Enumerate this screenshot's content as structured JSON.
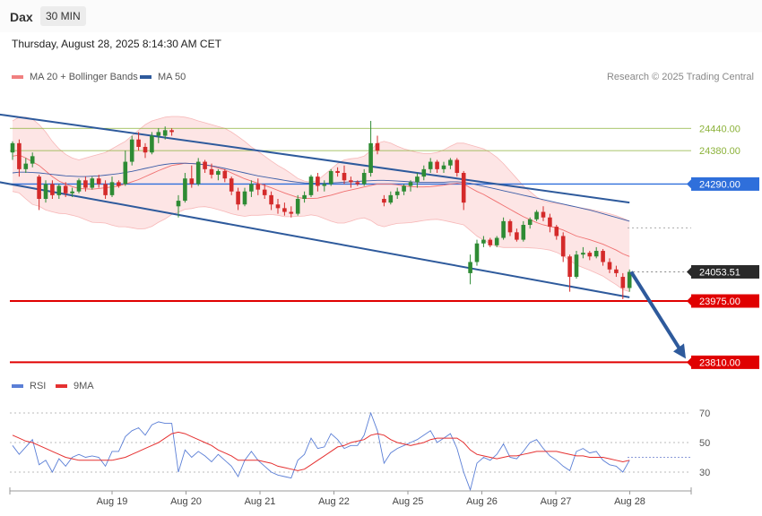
{
  "header": {
    "instrument": "Dax",
    "timeframe": "30 MIN"
  },
  "datetime": "Thursday, August 28, 2025 8:14:30 AM CET",
  "legend": {
    "ma20": {
      "label": "MA 20 + Bollinger Bands",
      "color": "#f08080"
    },
    "ma50": {
      "label": "MA 50",
      "color": "#2e5a9c"
    }
  },
  "copyright": "Research © 2025 Trading Central",
  "rsi_legend": {
    "rsi": {
      "label": "RSI",
      "color": "#5b7fd6"
    },
    "ma9": {
      "label": "9MA",
      "color": "#e53030"
    }
  },
  "chart_data": {
    "type": "candlestick",
    "x_ticks": [
      "Aug 19",
      "Aug 20",
      "Aug 21",
      "Aug 22",
      "Aug 25",
      "Aug 26",
      "Aug 27",
      "Aug 28"
    ],
    "levels": [
      {
        "label": "24440.00",
        "value": 24440,
        "color": "#8cb23a",
        "style": "thin"
      },
      {
        "label": "24380.00",
        "value": 24380,
        "color": "#8cb23a",
        "style": "thin"
      },
      {
        "label": "24290.00",
        "value": 24290,
        "color": "#2f6fdb",
        "style": "medium"
      },
      {
        "label": "23975.00",
        "value": 23975,
        "color": "#e00000",
        "style": "thick"
      },
      {
        "label": "23810.00",
        "value": 23810,
        "color": "#e00000",
        "style": "thick"
      }
    ],
    "last_price": {
      "label": "24053.51",
      "value": 24053.51
    },
    "ohlc": [
      [
        24375,
        24405,
        24355,
        24400
      ],
      [
        24400,
        24410,
        24310,
        24330
      ],
      [
        24330,
        24360,
        24320,
        24345
      ],
      [
        24345,
        24375,
        24335,
        24365
      ],
      [
        24310,
        24315,
        24220,
        24250
      ],
      [
        24250,
        24300,
        24240,
        24290
      ],
      [
        24290,
        24300,
        24250,
        24260
      ],
      [
        24260,
        24290,
        24250,
        24285
      ],
      [
        24285,
        24295,
        24255,
        24265
      ],
      [
        24265,
        24280,
        24255,
        24270
      ],
      [
        24270,
        24305,
        24265,
        24300
      ],
      [
        24300,
        24310,
        24270,
        24280
      ],
      [
        24280,
        24310,
        24275,
        24305
      ],
      [
        24305,
        24315,
        24280,
        24290
      ],
      [
        24290,
        24300,
        24250,
        24260
      ],
      [
        24260,
        24310,
        24255,
        24295
      ],
      [
        24295,
        24300,
        24280,
        24285
      ],
      [
        24290,
        24380,
        24285,
        24350
      ],
      [
        24350,
        24420,
        24340,
        24410
      ],
      [
        24410,
        24430,
        24380,
        24390
      ],
      [
        24390,
        24400,
        24360,
        24375
      ],
      [
        24375,
        24430,
        24370,
        24420
      ],
      [
        24420,
        24440,
        24400,
        24430
      ],
      [
        24420,
        24445,
        24410,
        24435
      ],
      [
        24435,
        24440,
        24420,
        24430
      ],
      [
        24230,
        24260,
        24200,
        24245
      ],
      [
        24245,
        24320,
        24240,
        24305
      ],
      [
        24305,
        24340,
        24280,
        24290
      ],
      [
        24290,
        24360,
        24285,
        24350
      ],
      [
        24350,
        24355,
        24320,
        24330
      ],
      [
        24330,
        24345,
        24305,
        24315
      ],
      [
        24315,
        24330,
        24300,
        24325
      ],
      [
        24325,
        24330,
        24295,
        24305
      ],
      [
        24305,
        24310,
        24260,
        24270
      ],
      [
        24270,
        24280,
        24220,
        24235
      ],
      [
        24235,
        24280,
        24230,
        24270
      ],
      [
        24270,
        24300,
        24255,
        24290
      ],
      [
        24290,
        24305,
        24260,
        24275
      ],
      [
        24275,
        24290,
        24250,
        24260
      ],
      [
        24260,
        24270,
        24220,
        24235
      ],
      [
        24235,
        24250,
        24210,
        24225
      ],
      [
        24225,
        24240,
        24205,
        24215
      ],
      [
        24215,
        24230,
        24200,
        24210
      ],
      [
        24210,
        24260,
        24205,
        24250
      ],
      [
        24250,
        24270,
        24240,
        24260
      ],
      [
        24260,
        24315,
        24255,
        24310
      ],
      [
        24310,
        24320,
        24270,
        24285
      ],
      [
        24285,
        24300,
        24270,
        24290
      ],
      [
        24290,
        24330,
        24285,
        24325
      ],
      [
        24325,
        24335,
        24310,
        24320
      ],
      [
        24320,
        24340,
        24290,
        24300
      ],
      [
        24300,
        24310,
        24280,
        24295
      ],
      [
        24295,
        24300,
        24285,
        24290
      ],
      [
        24290,
        24330,
        24285,
        24320
      ],
      [
        24320,
        24460,
        24310,
        24400
      ],
      [
        24400,
        24420,
        24370,
        24380
      ],
      [
        24250,
        24260,
        24230,
        24240
      ],
      [
        24240,
        24270,
        24235,
        24260
      ],
      [
        24260,
        24280,
        24250,
        24270
      ],
      [
        24270,
        24290,
        24260,
        24285
      ],
      [
        24285,
        24300,
        24270,
        24295
      ],
      [
        24295,
        24320,
        24280,
        24310
      ],
      [
        24310,
        24340,
        24300,
        24330
      ],
      [
        24330,
        24360,
        24320,
        24350
      ],
      [
        24350,
        24355,
        24320,
        24330
      ],
      [
        24330,
        24350,
        24320,
        24340
      ],
      [
        24340,
        24360,
        24330,
        24355
      ],
      [
        24355,
        24360,
        24310,
        24320
      ],
      [
        24320,
        24325,
        24220,
        24240
      ],
      [
        24050,
        24100,
        24020,
        24080
      ],
      [
        24080,
        24140,
        24070,
        24130
      ],
      [
        24130,
        24150,
        24120,
        24140
      ],
      [
        24140,
        24145,
        24120,
        24125
      ],
      [
        24125,
        24150,
        24120,
        24145
      ],
      [
        24145,
        24200,
        24140,
        24190
      ],
      [
        24190,
        24195,
        24150,
        24160
      ],
      [
        24160,
        24170,
        24135,
        24140
      ],
      [
        24140,
        24190,
        24135,
        24180
      ],
      [
        24180,
        24200,
        24170,
        24195
      ],
      [
        24195,
        24220,
        24190,
        24215
      ],
      [
        24215,
        24230,
        24190,
        24200
      ],
      [
        24200,
        24210,
        24160,
        24175
      ],
      [
        24175,
        24180,
        24140,
        24150
      ],
      [
        24150,
        24160,
        24080,
        24095
      ],
      [
        24095,
        24100,
        24000,
        24040
      ],
      [
        24040,
        24110,
        24035,
        24100
      ],
      [
        24100,
        24120,
        24090,
        24105
      ],
      [
        24105,
        24110,
        24085,
        24095
      ],
      [
        24095,
        24120,
        24090,
        24110
      ],
      [
        24110,
        24115,
        24070,
        24080
      ],
      [
        24080,
        24090,
        24050,
        24060
      ],
      [
        24060,
        24070,
        24040,
        24050
      ],
      [
        24040,
        24050,
        23980,
        24010
      ],
      [
        24010,
        24060,
        24000,
        24053.51
      ]
    ],
    "ma20": [
      24365,
      24368,
      24360,
      24350,
      24340,
      24325,
      24310,
      24298,
      24290,
      24283,
      24278,
      24277,
      24276,
      24278,
      24280,
      24282,
      24285,
      24290,
      24296,
      24302,
      24310,
      24318,
      24326,
      24333,
      24340,
      24343,
      24346,
      24345,
      24344,
      24342,
      24338,
      24333,
      24328,
      24320,
      24312,
      24304,
      24298,
      24292,
      24286,
      24280,
      24273,
      24266,
      24260,
      24254,
      24251,
      24251,
      24252,
      24256,
      24260,
      24265,
      24270,
      24274,
      24278,
      24282,
      24286,
      24290,
      24290,
      24290,
      24288,
      24285,
      24283,
      24282,
      24282,
      24283,
      24285,
      24287,
      24290,
      24292,
      24290,
      24280,
      24270,
      24262,
      24252,
      24242,
      24232,
      24222,
      24212,
      24202,
      24194,
      24186,
      24180,
      24176,
      24172,
      24166,
      24158,
      24150,
      24145,
      24140,
      24134,
      24128,
      24120,
      24112,
      24102,
      24095
    ],
    "bb_upper": [
      24460,
      24470,
      24470,
      24465,
      24450,
      24430,
      24405,
      24385,
      24370,
      24360,
      24355,
      24360,
      24365,
      24370,
      24375,
      24385,
      24395,
      24405,
      24420,
      24435,
      24450,
      24460,
      24465,
      24470,
      24472,
      24472,
      24470,
      24466,
      24460,
      24455,
      24450,
      24445,
      24440,
      24430,
      24418,
      24405,
      24390,
      24378,
      24365,
      24352,
      24340,
      24330,
      24318,
      24305,
      24298,
      24295,
      24300,
      24315,
      24330,
      24345,
      24355,
      24358,
      24360,
      24365,
      24380,
      24400,
      24405,
      24400,
      24392,
      24385,
      24380,
      24375,
      24372,
      24372,
      24375,
      24382,
      24392,
      24400,
      24400,
      24395,
      24390,
      24385,
      24375,
      24362,
      24345,
      24325,
      24305,
      24285,
      24270,
      24255,
      24245,
      24240,
      24238,
      24235,
      24232,
      24228,
      24225,
      24222,
      24218,
      24214,
      24210,
      24205,
      24198,
      24190
    ],
    "bb_lower": [
      24270,
      24266,
      24250,
      24235,
      24230,
      24220,
      24215,
      24211,
      24210,
      24206,
      24201,
      24194,
      24187,
      24186,
      24185,
      24179,
      24175,
      24175,
      24172,
      24169,
      24170,
      24176,
      24187,
      24196,
      24208,
      24214,
      24222,
      24224,
      24228,
      24229,
      24226,
      24221,
      24216,
      24210,
      24206,
      24203,
      24206,
      24206,
      24207,
      24208,
      24206,
      24202,
      24202,
      24203,
      24204,
      24207,
      24204,
      24197,
      24190,
      24185,
      24185,
      24190,
      24196,
      24199,
      24192,
      24180,
      24175,
      24180,
      24184,
      24185,
      24186,
      24189,
      24192,
      24194,
      24195,
      24192,
      24188,
      24184,
      24180,
      24165,
      24150,
      24139,
      24129,
      24122,
      24119,
      24119,
      24119,
      24119,
      24118,
      24117,
      24115,
      24112,
      24106,
      24097,
      24084,
      24072,
      24065,
      24058,
      24050,
      24042,
      24030,
      24019,
      24006,
      24000
    ],
    "ma50": [
      24320,
      24322,
      24322,
      24321,
      24320,
      24318,
      24316,
      24314,
      24312,
      24311,
      24310,
      24310,
      24311,
      24312,
      24314,
      24316,
      24318,
      24321,
      24324,
      24328,
      24332,
      24336,
      24340,
      24343,
      24345,
      24346,
      24346,
      24345,
      24344,
      24342,
      24339,
      24336,
      24332,
      24328,
      24324,
      24320,
      24316,
      24312,
      24309,
      24306,
      24303,
      24300,
      24297,
      24295,
      24293,
      24292,
      24292,
      24292,
      24293,
      24294,
      24295,
      24296,
      24297,
      24298,
      24299,
      24300,
      24300,
      24299,
      24298,
      24297,
      24296,
      24295,
      24295,
      24295,
      24295,
      24295,
      24296,
      24296,
      24295,
      24292,
      24288,
      24284,
      24280,
      24276,
      24272,
      24268,
      24264,
      24260,
      24256,
      24252,
      24248,
      24244,
      24240,
      24236,
      24232,
      24228,
      24224,
      24220,
      24215,
      24210,
      24205,
      24200,
      24195,
      24190
    ],
    "trendlines": [
      {
        "from": [
          -19,
          24520
        ],
        "to": [
          93,
          24240
        ]
      },
      {
        "from": [
          -5,
          24305
        ],
        "to": [
          93,
          23985
        ]
      }
    ],
    "rsi": [
      48,
      42,
      47,
      52,
      35,
      38,
      30,
      39,
      34,
      40,
      42,
      40,
      41,
      40,
      34,
      44,
      44,
      54,
      58,
      60,
      55,
      62,
      64,
      63,
      63,
      30,
      45,
      40,
      44,
      41,
      37,
      42,
      38,
      34,
      27,
      38,
      44,
      38,
      34,
      30,
      28,
      27,
      26,
      38,
      42,
      53,
      46,
      47,
      56,
      52,
      46,
      48,
      48,
      55,
      70,
      58,
      36,
      43,
      46,
      48,
      50,
      52,
      55,
      58,
      50,
      53,
      56,
      46,
      30,
      18,
      36,
      40,
      38,
      42,
      49,
      40,
      39,
      44,
      50,
      52,
      46,
      41,
      38,
      34,
      31,
      44,
      46,
      43,
      44,
      38,
      35,
      34,
      30,
      38
    ],
    "rsi_ma9": [
      55,
      53,
      51,
      50,
      48,
      46,
      44,
      42,
      40,
      39,
      38,
      38,
      38,
      38,
      38,
      38,
      39,
      40,
      42,
      44,
      46,
      48,
      50,
      53,
      56,
      57,
      56,
      54,
      52,
      50,
      48,
      45,
      43,
      41,
      38,
      38,
      38,
      38,
      37,
      36,
      34,
      33,
      32,
      31,
      32,
      35,
      38,
      41,
      44,
      47,
      48,
      50,
      51,
      52,
      55,
      56,
      55,
      52,
      50,
      49,
      48,
      49,
      50,
      52,
      53,
      53,
      53,
      53,
      50,
      45,
      42,
      41,
      40,
      39,
      40,
      41,
      41,
      42,
      43,
      44,
      44,
      44,
      44,
      43,
      42,
      41,
      41,
      40,
      40,
      40,
      39,
      38,
      37,
      38
    ],
    "rsi_levels": [
      70,
      50,
      30
    ],
    "projection": {
      "from": 24053.51,
      "to": 23810
    }
  }
}
